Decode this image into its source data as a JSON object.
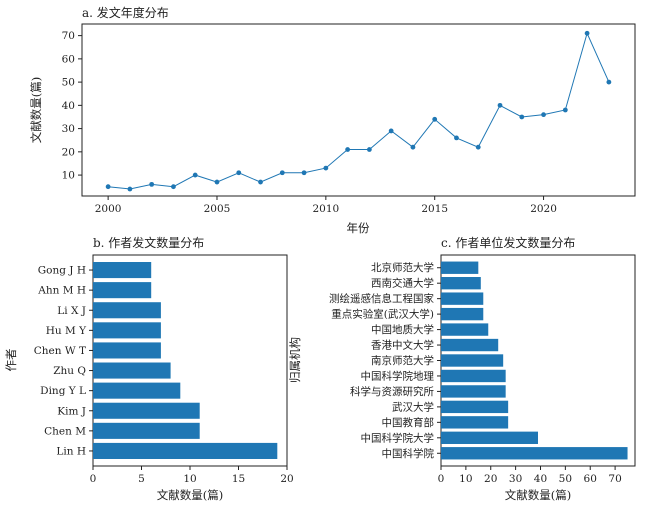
{
  "chart_data": [
    {
      "type": "line",
      "title": "a. 发文年度分布",
      "xlabel": "年份",
      "ylabel": "文献数量(篇)",
      "x": [
        2000,
        2001,
        2002,
        2003,
        2004,
        2005,
        2006,
        2007,
        2008,
        2009,
        2010,
        2011,
        2012,
        2013,
        2014,
        2015,
        2016,
        2017,
        2018,
        2019,
        2020,
        2021,
        2022,
        2023
      ],
      "values": [
        5,
        4,
        6,
        5,
        10,
        7,
        11,
        7,
        11,
        11,
        13,
        21,
        21,
        29,
        22,
        34,
        26,
        22,
        40,
        35,
        36,
        38,
        71,
        50
      ],
      "xticks": [
        "2000",
        "2005",
        "2010",
        "2015",
        "2020"
      ],
      "yticks": [
        "10",
        "20",
        "30",
        "40",
        "50",
        "60",
        "70"
      ],
      "xlim": [
        1998.8,
        2024.2
      ],
      "ylim": [
        1,
        75
      ],
      "color": "#1f77b4"
    },
    {
      "type": "bar",
      "orientation": "horizontal",
      "title": "b. 作者发文数量分布",
      "xlabel": "文献数量(篇)",
      "ylabel": "作者",
      "categories": [
        "Lin  H",
        "Chen M",
        "Kim J",
        "Ding Y L",
        "Zhu Q",
        "Chen W T",
        "Hu M Y",
        "Li  X J",
        "Ahn M H",
        "Gong J H"
      ],
      "values": [
        19,
        11,
        11,
        9,
        8,
        7,
        7,
        7,
        6,
        6
      ],
      "xticks": [
        "0",
        "5",
        "10",
        "15",
        "20"
      ],
      "xlim": [
        0,
        20
      ],
      "color": "#1f77b4"
    },
    {
      "type": "bar",
      "orientation": "horizontal",
      "title": "c. 作者单位发文数量分布",
      "xlabel": "文献数量(篇)",
      "ylabel": "归属机构",
      "categories": [
        "中国科学院",
        "中国科学院大学",
        "中国教育部",
        "武汉大学",
        "科学与资源研究所",
        "中国科学院地理",
        "南京师范大学",
        "香港中文大学",
        "中国地质大学",
        "重点实验室(武汉大学)",
        "测绘遥感信息工程国家",
        "西南交通大学",
        "北京师范大学"
      ],
      "values": [
        75,
        39,
        27,
        27,
        26,
        26,
        25,
        23,
        19,
        17,
        17,
        16,
        15
      ],
      "xticks": [
        "0",
        "10",
        "20",
        "30",
        "40",
        "50",
        "60",
        "70"
      ],
      "xlim": [
        0,
        78
      ],
      "color": "#1f77b4"
    }
  ]
}
